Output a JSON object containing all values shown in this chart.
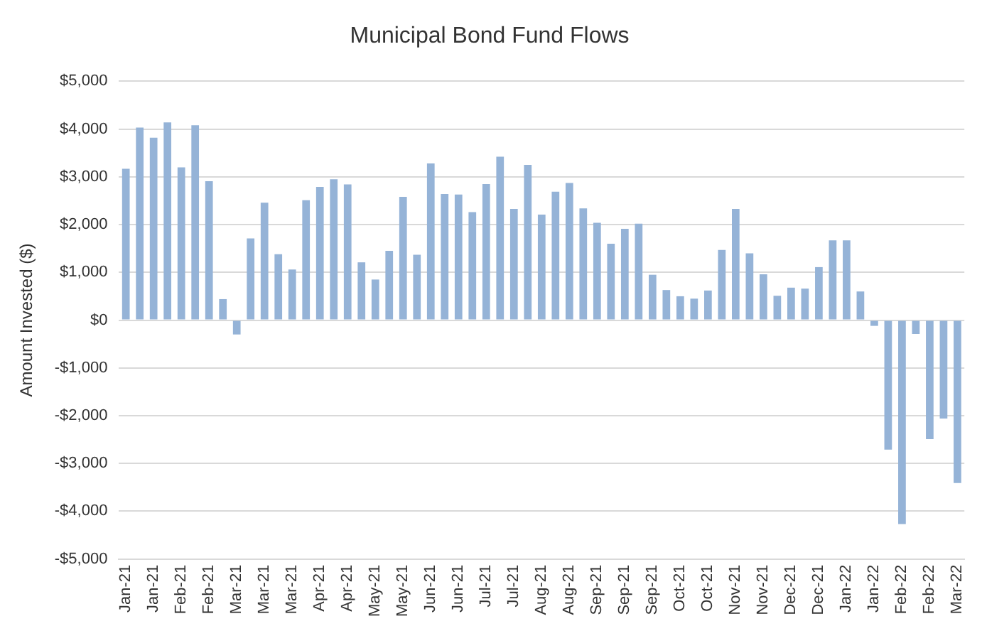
{
  "chart_data": {
    "type": "bar",
    "title": "Municipal Bond Fund Flows",
    "ylabel": "Amount Invested ($)",
    "categories": [
      "Jan-21",
      null,
      "Jan-21",
      null,
      "Feb-21",
      null,
      "Feb-21",
      null,
      "Mar-21",
      null,
      "Mar-21",
      null,
      "Mar-21",
      null,
      "Apr-21",
      null,
      "Apr-21",
      null,
      "May-21",
      null,
      "May-21",
      null,
      "Jun-21",
      null,
      "Jun-21",
      null,
      "Jul-21",
      null,
      "Jul-21",
      null,
      "Aug-21",
      null,
      "Aug-21",
      null,
      "Sep-21",
      null,
      "Sep-21",
      null,
      "Sep-21",
      null,
      "Oct-21",
      null,
      "Oct-21",
      null,
      "Nov-21",
      null,
      "Nov-21",
      null,
      "Dec-21",
      null,
      "Dec-21",
      null,
      "Jan-22",
      null,
      "Jan-22",
      null,
      "Feb-22",
      null,
      "Feb-22",
      null,
      "Mar-22"
    ],
    "values": [
      3170,
      4030,
      3820,
      4140,
      3200,
      4080,
      2910,
      440,
      -300,
      1710,
      2460,
      1380,
      1060,
      2510,
      2790,
      2950,
      2840,
      1210,
      850,
      1450,
      2580,
      1370,
      3280,
      2640,
      2630,
      2260,
      2850,
      3420,
      2330,
      3250,
      2210,
      2690,
      2870,
      2340,
      2040,
      1600,
      1910,
      2020,
      950,
      630,
      500,
      450,
      620,
      1470,
      2330,
      1400,
      960,
      510,
      680,
      660,
      1110,
      1670,
      1670,
      600,
      -120,
      -2710,
      -4270,
      -290,
      -2490,
      -2060,
      -3410
    ],
    "color": "#95b3d7",
    "ylim": [
      -5000,
      5000
    ],
    "yticks": [
      {
        "value": -5000,
        "label": "-$5,000"
      },
      {
        "value": -4000,
        "label": "-$4,000"
      },
      {
        "value": -3000,
        "label": "-$3,000"
      },
      {
        "value": -2000,
        "label": "-$2,000"
      },
      {
        "value": -1000,
        "label": "-$1,000"
      },
      {
        "value": 0,
        "label": "$0"
      },
      {
        "value": 1000,
        "label": "$1,000"
      },
      {
        "value": 2000,
        "label": "$2,000"
      },
      {
        "value": 3000,
        "label": "$3,000"
      },
      {
        "value": 4000,
        "label": "$4,000"
      },
      {
        "value": 5000,
        "label": "$5,000"
      }
    ],
    "grid": "y",
    "legend": false
  }
}
